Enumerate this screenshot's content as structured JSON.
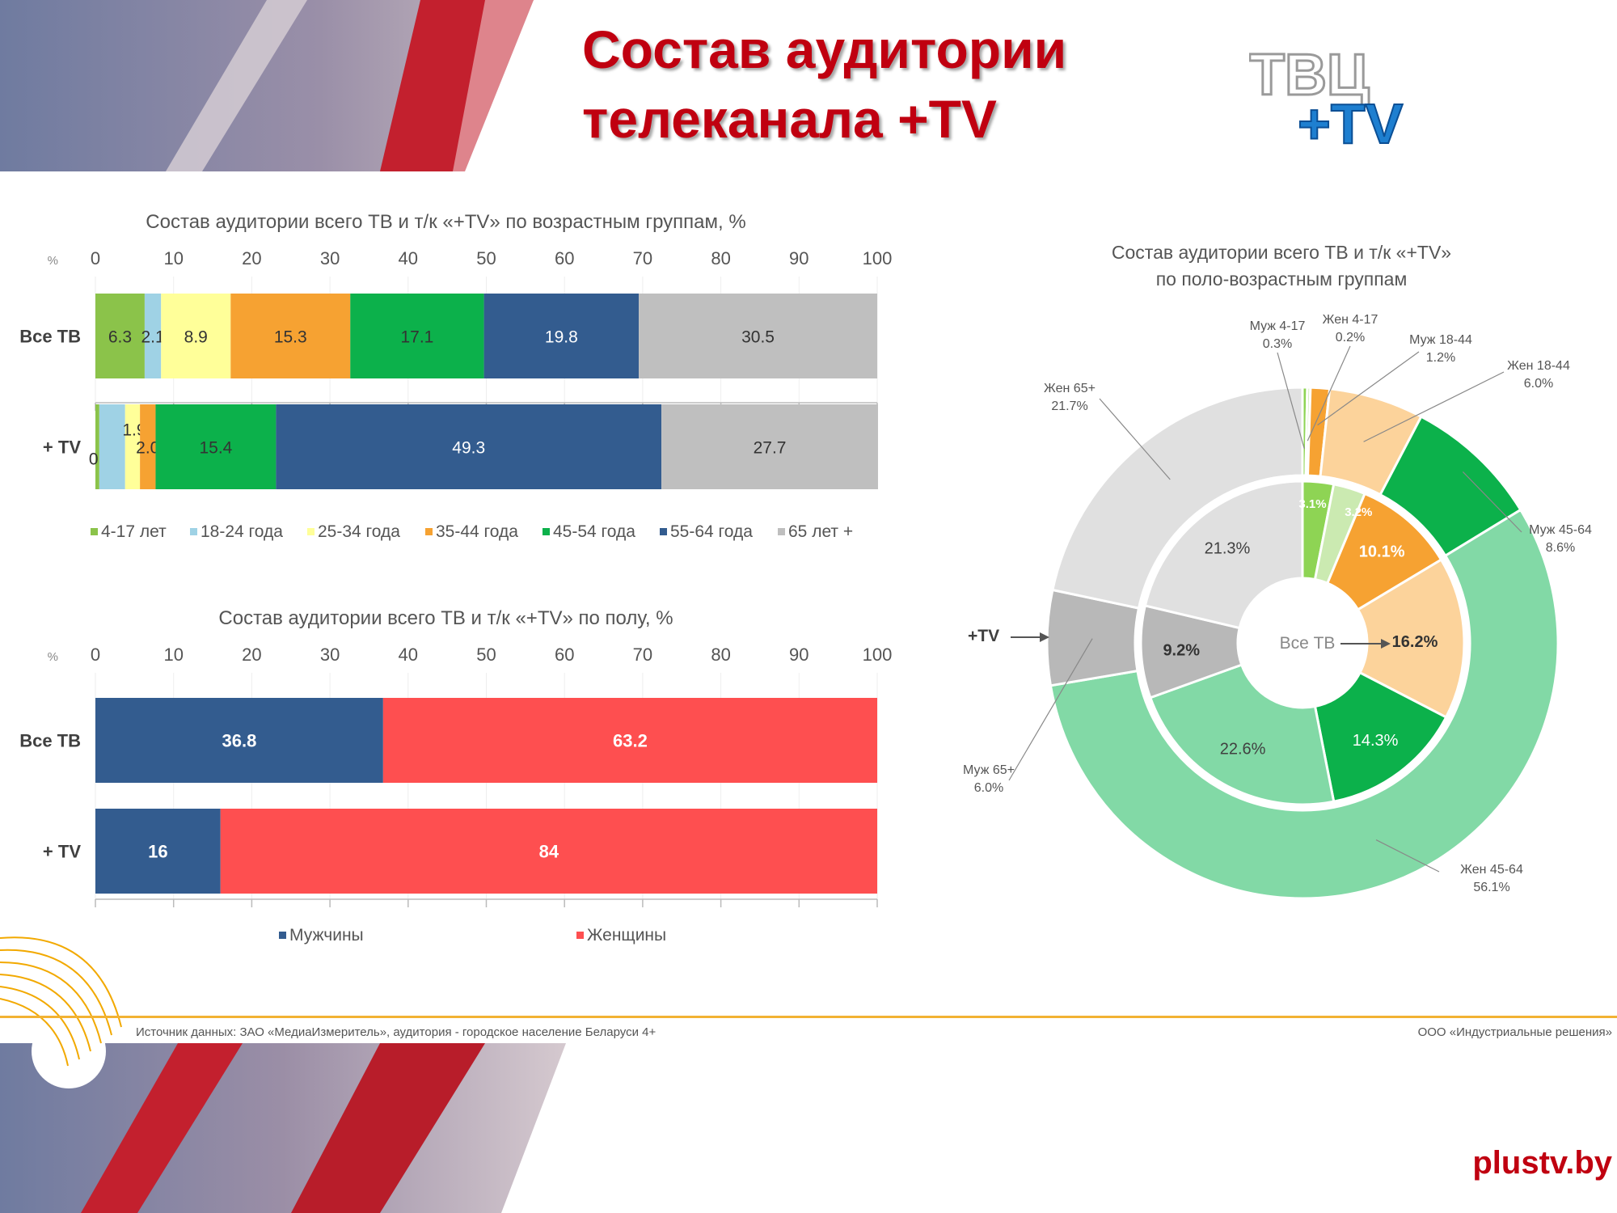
{
  "slide": {
    "title_line1": "Состав аудитории",
    "title_line2": "телеканала +TV",
    "source": "Источник данных: ЗАО «МедиаИзмеритель», аудитория - городское население Беларуси 4+",
    "company": "ООО «Индустриальные решения»",
    "website": "plustv.by",
    "logo": {
      "top_text": "ТВЦ",
      "bottom_text": "+TV"
    },
    "colors": {
      "title": "#c00010",
      "accent_line": "#f2b233"
    }
  },
  "chart_data": [
    {
      "type": "bar",
      "orientation": "horizontal",
      "stacked": true,
      "title": "Состав аудитории всего ТВ и т/к «+TV» по возрастным группам, %",
      "axis_unit_label": "%",
      "xlim": [
        0,
        100
      ],
      "ticks": [
        0,
        10,
        20,
        30,
        40,
        50,
        60,
        70,
        80,
        90,
        100
      ],
      "categories": [
        "Все ТВ",
        "+ TV"
      ],
      "series": [
        {
          "name": "4-17 лет",
          "color": "#8bc34a",
          "values": [
            6.3,
            0.5
          ]
        },
        {
          "name": "18-24 года",
          "color": "#9fd2e5",
          "values": [
            2.1,
            3.3
          ]
        },
        {
          "name": "25-34 года",
          "color": "#ffff99",
          "values": [
            8.9,
            1.9
          ]
        },
        {
          "name": "35-44 года",
          "color": "#f6a232",
          "values": [
            15.3,
            2.0
          ]
        },
        {
          "name": "45-54 года",
          "color": "#0cb14b",
          "values": [
            17.1,
            15.4
          ]
        },
        {
          "name": "55-64 года",
          "color": "#335c8f",
          "values": [
            19.8,
            49.3
          ]
        },
        {
          "name": "65 лет +",
          "color": "#bfbfbf",
          "values": [
            30.5,
            27.7
          ]
        }
      ],
      "data_labels": [
        [
          "6.3",
          "2.1",
          "8.9",
          "15.3",
          "17.1",
          "19.8",
          "30.5"
        ],
        [
          "0.5",
          "",
          "1.9",
          "2.0",
          "15.4",
          "49.3",
          "27.7"
        ]
      ],
      "legend": "bottom"
    },
    {
      "type": "bar",
      "orientation": "horizontal",
      "stacked": true,
      "title": "Состав аудитории всего ТВ и т/к «+TV» по полу, %",
      "axis_unit_label": "%",
      "xlim": [
        0,
        100
      ],
      "ticks": [
        0,
        10,
        20,
        30,
        40,
        50,
        60,
        70,
        80,
        90,
        100
      ],
      "categories": [
        "Все ТВ",
        "+ TV"
      ],
      "series": [
        {
          "name": "Мужчины",
          "color": "#335c8f",
          "values": [
            36.8,
            16
          ]
        },
        {
          "name": "Женщины",
          "color": "#fe4f50",
          "values": [
            63.2,
            84
          ]
        }
      ],
      "data_labels": [
        [
          "36.8",
          "63.2"
        ],
        [
          "16",
          "84"
        ]
      ],
      "legend": "bottom"
    },
    {
      "type": "pie",
      "subtype": "donut-nested",
      "title_line1": "Состав аудитории всего ТВ и т/к «+TV»",
      "title_line2": "по поло-возрастным группам",
      "inner_ring_label": "Все ТВ",
      "outer_ring_label": "+TV",
      "inner_ring": [
        {
          "value": 3.1,
          "label": "3.1%",
          "color": "#8ed454"
        },
        {
          "value": 3.2,
          "label": "3.2%",
          "color": "#cbeab1"
        },
        {
          "value": 10.1,
          "label": "10.1%",
          "color": "#f6a232"
        },
        {
          "value": 16.2,
          "label": "16.2%",
          "color": "#fcd39b"
        },
        {
          "value": 14.3,
          "label": "14.3%",
          "color": "#0cb14b"
        },
        {
          "value": 22.6,
          "label": "22.6%",
          "color": "#82d9a6"
        },
        {
          "value": 9.2,
          "label": "9.2%",
          "color": "#b8b8b8"
        },
        {
          "value": 21.3,
          "label": "21.3%",
          "color": "#e0e0e0"
        }
      ],
      "outer_ring": [
        {
          "name": "Муж 4-17",
          "value": 0.3,
          "label": "0.3%",
          "color": "#8ed454"
        },
        {
          "name": "Жен 4-17",
          "value": 0.2,
          "label": "0.2%",
          "color": "#cbeab1"
        },
        {
          "name": "Муж 18-44",
          "value": 1.2,
          "label": "1.2%",
          "color": "#f6a232"
        },
        {
          "name": "Жен 18-44",
          "value": 6.0,
          "label": "6.0%",
          "color": "#fcd39b"
        },
        {
          "name": "Муж 45-64",
          "value": 8.6,
          "label": "8.6%",
          "color": "#0cb14b"
        },
        {
          "name": "Жен 45-64",
          "value": 56.1,
          "label": "56.1%",
          "color": "#82d9a6"
        },
        {
          "name": "Муж 65+",
          "value": 6.0,
          "label": "6.0%",
          "color": "#b8b8b8"
        },
        {
          "name": "Жен 65+",
          "value": 21.7,
          "label": "21.7%",
          "color": "#e0e0e0"
        }
      ]
    }
  ]
}
